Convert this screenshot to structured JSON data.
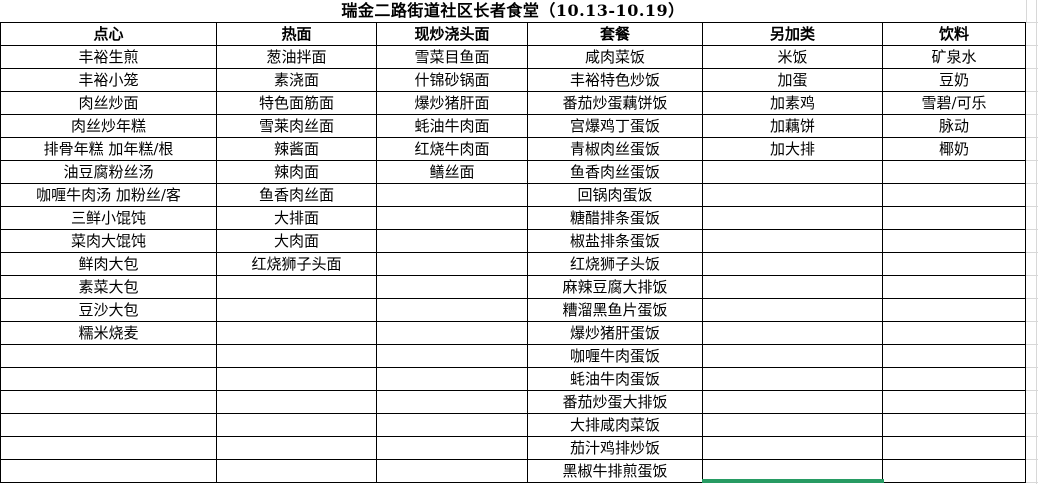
{
  "title": "瑞金二路街道社区长者食堂（10.13-10.19）",
  "colors": {
    "table_border": "#000000",
    "faint_gridline": "#d8d8d8",
    "selection_green": "#279b63",
    "background": "#ffffff",
    "text": "#000000"
  },
  "table": {
    "row_count": 19,
    "columns": [
      {
        "id": "dianxin",
        "header": "点心",
        "items": [
          "丰裕生煎",
          "丰裕小笼",
          "肉丝炒面",
          "肉丝炒年糕",
          "排骨年糕 加年糕/根",
          "油豆腐粉丝汤",
          "咖喱牛肉汤 加粉丝/客",
          "三鲜小馄饨",
          "菜肉大馄饨",
          "鲜肉大包",
          "素菜大包",
          "豆沙大包",
          "糯米烧麦"
        ]
      },
      {
        "id": "remian",
        "header": "热面",
        "items": [
          "葱油拌面",
          "素浇面",
          "特色面筋面",
          "雪莱肉丝面",
          "辣酱面",
          "辣肉面",
          "鱼香肉丝面",
          "大排面",
          "大肉面",
          "红烧狮子头面"
        ]
      },
      {
        "id": "xianchao-jiaotou-mian",
        "header": "现炒浇头面",
        "items": [
          "雪菜目鱼面",
          "什锦砂锅面",
          "爆炒猪肝面",
          "蚝油牛肉面",
          "红烧牛肉面",
          "鳝丝面"
        ]
      },
      {
        "id": "taocan",
        "header": "套餐",
        "items": [
          "咸肉菜饭",
          "丰裕特色炒饭",
          "番茄炒蛋藕饼饭",
          "宫爆鸡丁蛋饭",
          "青椒肉丝蛋饭",
          "鱼香肉丝蛋饭",
          "回锅肉蛋饭",
          "糖醋排条蛋饭",
          "椒盐排条蛋饭",
          "红烧狮子头饭",
          "麻辣豆腐大排饭",
          "糟溜黑鱼片蛋饭",
          "爆炒猪肝蛋饭",
          "咖喱牛肉蛋饭",
          "蚝油牛肉蛋饭",
          "番茄炒蛋大排饭",
          "大排咸肉菜饭",
          "茄汁鸡排炒饭",
          "黑椒牛排煎蛋饭"
        ]
      },
      {
        "id": "lingjialei",
        "header": "另加类",
        "items": [
          "米饭",
          "加蛋",
          "加素鸡",
          "加藕饼",
          "加大排"
        ]
      },
      {
        "id": "yinliao",
        "header": "饮料",
        "items": [
          "矿泉水",
          "豆奶",
          "雪碧/可乐",
          "脉动",
          "椰奶"
        ]
      }
    ]
  }
}
